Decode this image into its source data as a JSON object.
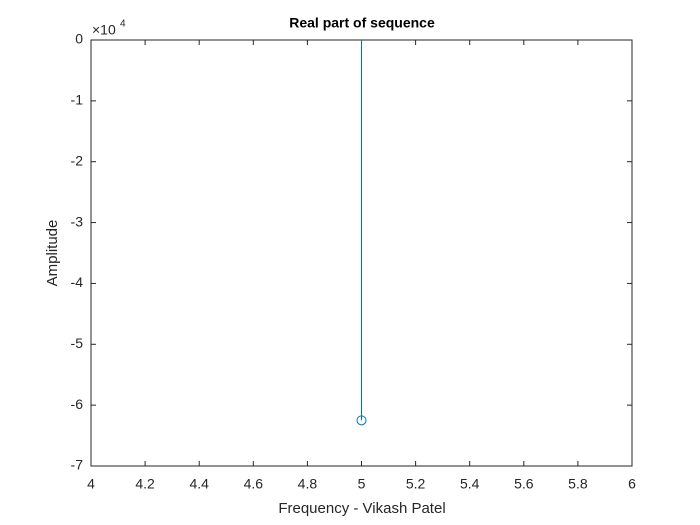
{
  "chart_data": {
    "type": "stem",
    "title": "Real part of sequence",
    "x_label": "Frequency - Vikash Patel",
    "y_label": "Amplitude",
    "y_multiplier": {
      "base": "×10",
      "exponent": "4"
    },
    "x": [
      5
    ],
    "values": [
      -6.25
    ],
    "color": "#0072bd",
    "xlim": [
      4,
      6
    ],
    "xticks": [
      4,
      4.2,
      4.4,
      4.6,
      4.8,
      5,
      5.2,
      5.4,
      5.6,
      5.8,
      6
    ],
    "ylim": [
      -7,
      0
    ],
    "yticks": [
      -7,
      -6,
      -5,
      -4,
      -3,
      -2,
      -1,
      0
    ]
  }
}
